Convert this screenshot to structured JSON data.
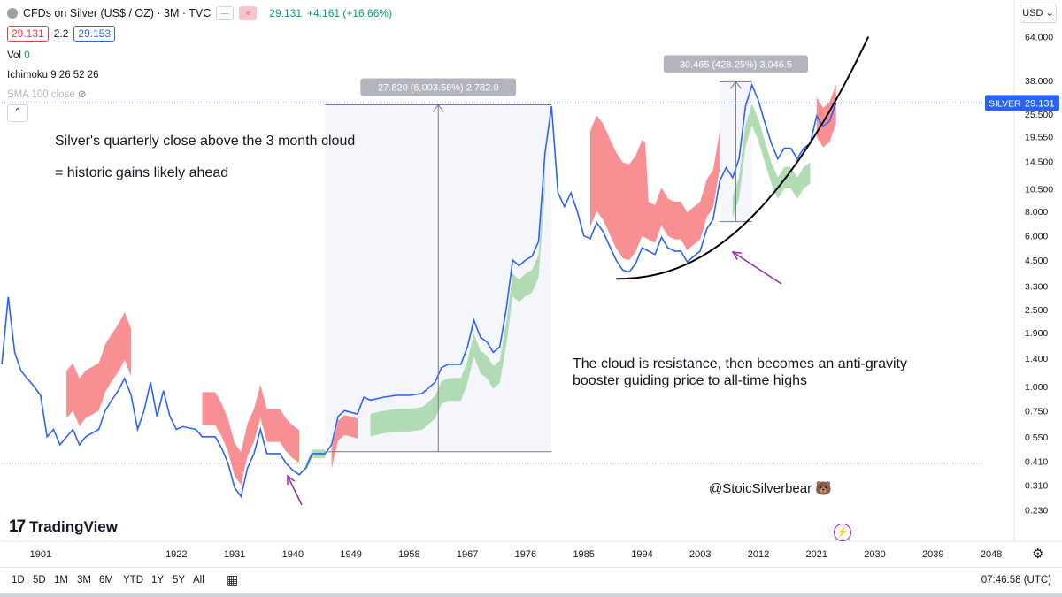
{
  "header": {
    "symbol_title": "CFDs on Silver (US$ / OZ) · 3M · TVC",
    "price": "29.131",
    "change": "+4.161 (+16.66%)",
    "bid": "29.131",
    "spread": "2.2",
    "ask": "29.153",
    "currency": "USD"
  },
  "indicators": {
    "vol_label": "Vol",
    "vol_value": "0",
    "ichimoku": "Ichimoku 9 26 52 26",
    "sma": "SMA 100 close"
  },
  "annotations": {
    "title_line1": "Silver's quarterly close above the 3 month cloud",
    "title_line2": "= historic gains likely ahead",
    "cloud_note_line1": "The cloud is resistance, then becomes an anti-gravity",
    "cloud_note_line2": "booster guiding price to all-time highs",
    "author": "@StoicSilverbear 🐻",
    "measure1": "27.820 (6,003.56%) 2,782.0",
    "measure2": "30.465 (428.25%) 3,046.5"
  },
  "price_label": {
    "symbol": "SILVER",
    "value": "29.131"
  },
  "bottom": {
    "timeframes": [
      "1D",
      "5D",
      "1M",
      "3M",
      "6M",
      "YTD",
      "1Y",
      "5Y",
      "All"
    ],
    "clock": "07:46:58 (UTC)"
  },
  "branding": {
    "name": "TradingView",
    "mark": "17"
  },
  "colors": {
    "price_line": "#2962ff",
    "cloud_bear": "#f77c80",
    "cloud_bull": "#a5d6a7",
    "curve": "#000000",
    "arrow": "#9c27b0"
  },
  "icons": [
    "settings-icon",
    "calendar-range-icon",
    "lightning-icon",
    "collapse-icon",
    "visibility-off-icon"
  ],
  "chart_data": {
    "type": "line",
    "title": "CFDs on Silver (US$ / OZ)",
    "yscale": "log",
    "ylim": [
      0.2,
      70
    ],
    "xlim": [
      1895,
      2051
    ],
    "y_ticks": [
      "64.000",
      "38.000",
      "25.500",
      "19.550",
      "14.500",
      "10.500",
      "8.000",
      "6.000",
      "4.500",
      "3.300",
      "2.500",
      "1.900",
      "1.400",
      "1.000",
      "0.750",
      "0.550",
      "0.410",
      "0.310",
      "0.230"
    ],
    "x_ticks": [
      "1901",
      "1922",
      "1931",
      "1940",
      "1949",
      "1958",
      "1967",
      "1976",
      "1985",
      "1994",
      "2003",
      "2012",
      "2021",
      "2030",
      "2039",
      "2048"
    ],
    "series": [
      {
        "name": "SILVER",
        "x": [
          1895,
          1896,
          1897,
          1898,
          1900,
          1901,
          1902,
          1903,
          1904,
          1906,
          1907,
          1908,
          1910,
          1911,
          1912,
          1913,
          1914,
          1915,
          1916,
          1917,
          1918,
          1919,
          1920,
          1921,
          1922,
          1923,
          1925,
          1926,
          1928,
          1929,
          1930,
          1931,
          1932,
          1933,
          1934,
          1935,
          1936,
          1937,
          1938,
          1939,
          1940,
          1941,
          1942,
          1943,
          1944,
          1945,
          1946,
          1947,
          1948,
          1950,
          1951,
          1952,
          1954,
          1956,
          1958,
          1960,
          1962,
          1963,
          1964,
          1966,
          1967,
          1968,
          1969,
          1970,
          1971,
          1972,
          1973,
          1974,
          1975,
          1976,
          1977,
          1978,
          1979,
          1980,
          1981,
          1982,
          1983,
          1984,
          1985,
          1986,
          1987,
          1988,
          1989,
          1990,
          1991,
          1992,
          1993,
          1994,
          1995,
          1996,
          1997,
          1998,
          1999,
          2000,
          2001,
          2002,
          2003,
          2004,
          2005,
          2006,
          2007,
          2008,
          2009,
          2010,
          2011,
          2012,
          2013,
          2014,
          2015,
          2016,
          2017,
          2018,
          2019,
          2020,
          2021,
          2022,
          2023,
          2024
        ],
        "y": [
          1.3,
          2.9,
          1.5,
          1.2,
          1.0,
          0.9,
          0.55,
          0.6,
          0.5,
          0.6,
          0.5,
          0.55,
          0.6,
          0.75,
          0.85,
          0.95,
          1.1,
          0.9,
          0.6,
          0.75,
          1.05,
          0.7,
          0.95,
          0.7,
          0.6,
          0.62,
          0.6,
          0.55,
          0.55,
          0.48,
          0.4,
          0.3,
          0.27,
          0.38,
          0.45,
          0.6,
          0.45,
          0.45,
          0.45,
          0.4,
          0.37,
          0.35,
          0.38,
          0.45,
          0.45,
          0.45,
          0.5,
          0.7,
          0.75,
          0.72,
          0.88,
          0.85,
          0.88,
          0.9,
          0.9,
          0.92,
          1.05,
          1.25,
          1.3,
          1.3,
          1.6,
          2.2,
          1.8,
          1.7,
          1.5,
          1.6,
          2.5,
          4.5,
          4.2,
          4.5,
          4.7,
          5.6,
          16,
          28,
          10,
          8.5,
          10,
          8,
          6,
          5.8,
          7,
          6.3,
          5.3,
          4.5,
          4.0,
          3.9,
          4.3,
          5.2,
          5.0,
          4.8,
          5.9,
          5.2,
          5.0,
          5.0,
          4.4,
          4.7,
          5.0,
          6.5,
          7.3,
          11.5,
          13.5,
          12,
          15,
          28,
          36,
          30,
          23,
          18,
          15,
          17,
          17,
          15,
          17,
          18,
          25,
          22,
          23.5,
          29.1
        ]
      },
      {
        "name": "Ichimoku bearish cloud",
        "periods": [
          "1905-1915",
          "1926-1941",
          "1946-1950",
          "1980-2006",
          "2021-2024"
        ]
      },
      {
        "name": "Ichimoku bullish cloud",
        "periods": [
          "1942-1945",
          "1952-1980",
          "2008-2020"
        ]
      }
    ],
    "reference_lines": [
      {
        "label": "SILVER",
        "y": 29.131
      }
    ],
    "measurements": [
      {
        "label": "27.820 (6,003.56%) 2,782.0",
        "from_year": 1945,
        "to_year": 1980,
        "from_y": 0.46,
        "to_y": 28.5
      },
      {
        "label": "30.465 (428.25%) 3,046.5",
        "from_year": 2006,
        "to_year": 2011,
        "from_y": 7.1,
        "to_y": 37.5
      }
    ],
    "grid": false,
    "legend": "top-left"
  }
}
